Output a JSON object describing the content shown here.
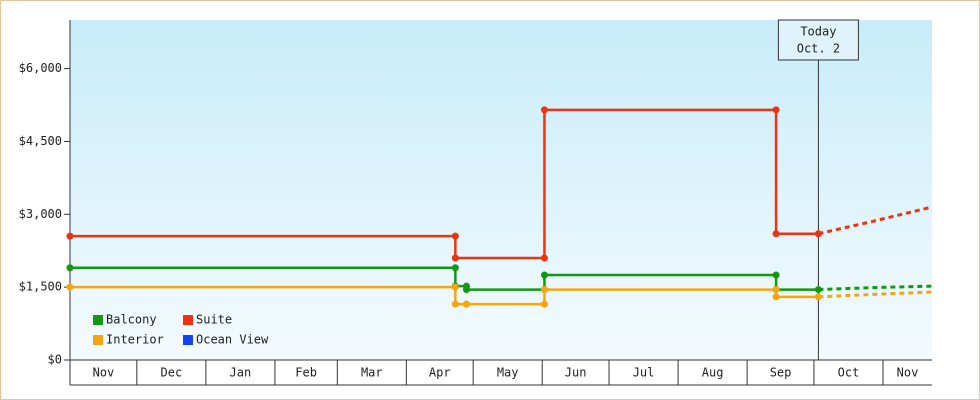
{
  "chart_data": {
    "type": "line",
    "xlim": [
      0,
      387
    ],
    "xticks": [
      {
        "value": 0,
        "label": "Nov"
      },
      {
        "value": 30,
        "label": "Dec"
      },
      {
        "value": 61,
        "label": "Jan"
      },
      {
        "value": 92,
        "label": "Feb"
      },
      {
        "value": 120,
        "label": "Mar"
      },
      {
        "value": 151,
        "label": "Apr"
      },
      {
        "value": 181,
        "label": "May"
      },
      {
        "value": 212,
        "label": "Jun"
      },
      {
        "value": 242,
        "label": "Jul"
      },
      {
        "value": 273,
        "label": "Aug"
      },
      {
        "value": 304,
        "label": "Sep"
      },
      {
        "value": 334,
        "label": "Oct"
      },
      {
        "value": 365,
        "label": "Nov"
      }
    ],
    "ylim": [
      0,
      7000
    ],
    "yticks": [
      {
        "value": 0,
        "label": "$0"
      },
      {
        "value": 1500,
        "label": "$1,500"
      },
      {
        "value": 3000,
        "label": "$3,000"
      },
      {
        "value": 4500,
        "label": "$4,500"
      },
      {
        "value": 6000,
        "label": "$6,000"
      }
    ],
    "legend_position": "lower left",
    "series": [
      {
        "name": "Balcony",
        "color": "#119911",
        "x": [
          0,
          173,
          173,
          178,
          178,
          213,
          213,
          317,
          317,
          336
        ],
        "values": [
          1900,
          1900,
          1520,
          1520,
          1450,
          1450,
          1750,
          1750,
          1450,
          1450
        ],
        "forecast": {
          "x": [
            336,
            360,
            387
          ],
          "values": [
            1450,
            1490,
            1520
          ]
        }
      },
      {
        "name": "Suite",
        "color": "#ee3311",
        "x": [
          0,
          173,
          173,
          213,
          213,
          317,
          317,
          336
        ],
        "values": [
          2550,
          2550,
          2100,
          2100,
          5150,
          5150,
          2600,
          2600
        ],
        "forecast": {
          "x": [
            336,
            360,
            387
          ],
          "values": [
            2600,
            2850,
            3150
          ]
        }
      },
      {
        "name": "Interior",
        "color": "#f5a511",
        "x": [
          0,
          173,
          173,
          178,
          178,
          213,
          213,
          317,
          317,
          336
        ],
        "values": [
          1500,
          1500,
          1150,
          1150,
          1150,
          1150,
          1450,
          1450,
          1300,
          1300
        ],
        "forecast": {
          "x": [
            336,
            360,
            387
          ],
          "values": [
            1300,
            1350,
            1400
          ]
        }
      },
      {
        "name": "Ocean View",
        "color": "#1144ee",
        "x": [],
        "values": []
      }
    ],
    "annotation": {
      "x": 336,
      "lines": [
        "Today",
        "Oct. 2"
      ]
    }
  }
}
